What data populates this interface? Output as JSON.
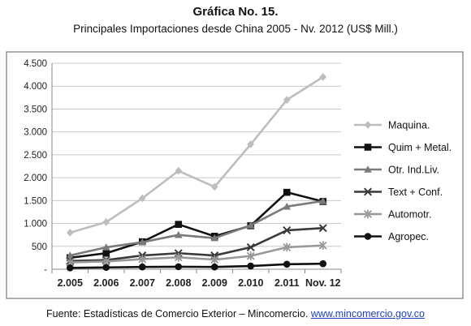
{
  "title": "Gráfica No. 15.",
  "subtitle": "Principales Importaciones desde China 2005 - Nv. 2012 (US$ Mill.)",
  "source": {
    "text": "Fuente: Estadísticas de Comercio Exterior – Mincomercio. ",
    "link": "www.mincomercio.gov.co"
  },
  "chart_data": {
    "type": "line",
    "categories": [
      "2.005",
      "2.006",
      "2.007",
      "2.008",
      "2.009",
      "2.010",
      "2.011",
      "Nov. 12"
    ],
    "ylim": [
      0,
      4500
    ],
    "yticks": [
      0,
      500,
      1000,
      1500,
      2000,
      2500,
      3000,
      3500,
      4000,
      4500
    ],
    "ytick_labels": [
      "-",
      "500",
      "1.000",
      "1.500",
      "2.000",
      "2.500",
      "3.000",
      "3.500",
      "4.000",
      "4.500"
    ],
    "grid": true,
    "legend_position": "right",
    "series": [
      {
        "name": "Maquina.",
        "color": "#bdbdbd",
        "marker": "diamond",
        "values": [
          800,
          1030,
          1550,
          2150,
          1800,
          2730,
          3700,
          4200
        ]
      },
      {
        "name": "Quim + Metal.",
        "color": "#111111",
        "marker": "square",
        "values": [
          250,
          350,
          600,
          980,
          720,
          950,
          1680,
          1480
        ]
      },
      {
        "name": "Otr. Ind.Liv.",
        "color": "#7a7a7a",
        "marker": "triangle",
        "values": [
          300,
          480,
          590,
          750,
          680,
          960,
          1370,
          1490
        ]
      },
      {
        "name": "Text + Conf.",
        "color": "#3a3a3a",
        "marker": "x",
        "values": [
          180,
          200,
          300,
          350,
          300,
          480,
          850,
          900
        ]
      },
      {
        "name": "Automotr.",
        "color": "#999999",
        "marker": "star",
        "values": [
          150,
          170,
          220,
          260,
          210,
          290,
          480,
          520
        ]
      },
      {
        "name": "Agropec.",
        "color": "#111111",
        "marker": "circle",
        "values": [
          30,
          40,
          50,
          55,
          50,
          70,
          110,
          120
        ]
      }
    ]
  }
}
